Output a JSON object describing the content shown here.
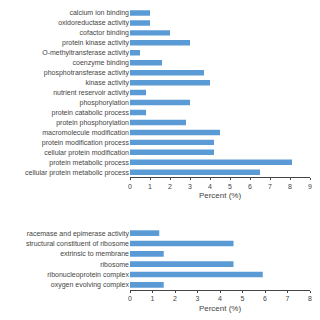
{
  "chart_data": [
    {
      "type": "bar",
      "orientation": "horizontal",
      "categories": [
        "calcium ion binding",
        "oxidoreductase activity",
        "cofactor binding",
        "protein kinase activity",
        "O-methyltransferase activity",
        "coenzyme binding",
        "phosphotransferase activity",
        "kinase activity",
        "nutrient reservoir activity",
        "phosphorylation",
        "protein catabolic process",
        "protein phosphorylation",
        "macromolecule modification",
        "protein modification process",
        "cellular protein modification",
        "protein metabolic process",
        "cellular protein metabolic process"
      ],
      "values": [
        1.0,
        1.0,
        2.0,
        3.0,
        0.5,
        1.6,
        3.7,
        4.0,
        0.8,
        3.0,
        0.8,
        2.8,
        4.5,
        4.2,
        4.2,
        8.1,
        6.5
      ],
      "color": "#5b9bd5",
      "x_label": "Percent (%)",
      "xlim": [
        0,
        9
      ],
      "xticks": [
        0,
        1,
        2,
        3,
        4,
        5,
        6,
        7,
        8,
        9
      ],
      "grid": false
    },
    {
      "type": "bar",
      "orientation": "horizontal",
      "categories": [
        "racemase and epimerase activity",
        "structural constituent of ribosome",
        "extrinsic to membrane",
        "ribosome",
        "ribonucleoprotein complex",
        "oxygen evolving complex"
      ],
      "values": [
        1.3,
        4.6,
        1.5,
        4.6,
        5.9,
        1.5
      ],
      "color": "#5b9bd5",
      "x_label": "Percent (%)",
      "xlim": [
        0,
        8
      ],
      "xticks": [
        0,
        1,
        2,
        3,
        4,
        5,
        6,
        7,
        8
      ],
      "grid": false
    }
  ]
}
